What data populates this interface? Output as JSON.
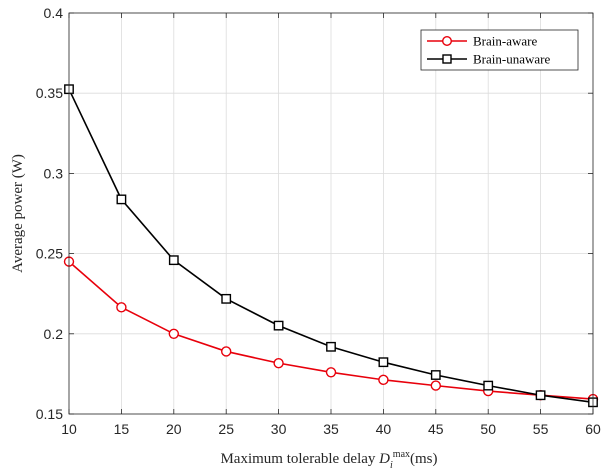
{
  "chart_data": {
    "type": "line",
    "xlabel": "Maximum tolerable delay",
    "xlabel_symbol": "D",
    "xlabel_subscript": "i",
    "xlabel_superscript": "max",
    "xlabel_unit": "(ms)",
    "ylabel": "Average power (W)",
    "x": [
      10,
      15,
      20,
      25,
      30,
      35,
      40,
      45,
      50,
      55,
      60
    ],
    "xlim": [
      10,
      60
    ],
    "ylim": [
      0.15,
      0.4
    ],
    "xticks": [
      10,
      15,
      20,
      25,
      30,
      35,
      40,
      45,
      50,
      55,
      60
    ],
    "yticks": [
      0.15,
      0.2,
      0.25,
      0.3,
      0.35,
      0.4
    ],
    "ytick_labels": [
      "0.15",
      "0.2",
      "0.25",
      "0.3",
      "0.35",
      "0.4"
    ],
    "grid": true,
    "legend_position": "top-right",
    "series": [
      {
        "name": "Brain-aware",
        "color": "#e8000b",
        "marker": "circle",
        "values": [
          0.245,
          0.2165,
          0.2,
          0.189,
          0.1817,
          0.176,
          0.1713,
          0.1677,
          0.1643,
          0.1617,
          0.1593
        ]
      },
      {
        "name": "Brain-unaware",
        "color": "#000000",
        "marker": "square",
        "values": [
          0.3525,
          0.2838,
          0.2459,
          0.2218,
          0.2051,
          0.1919,
          0.1823,
          0.1743,
          0.1677,
          0.1617,
          0.1573
        ]
      }
    ]
  }
}
